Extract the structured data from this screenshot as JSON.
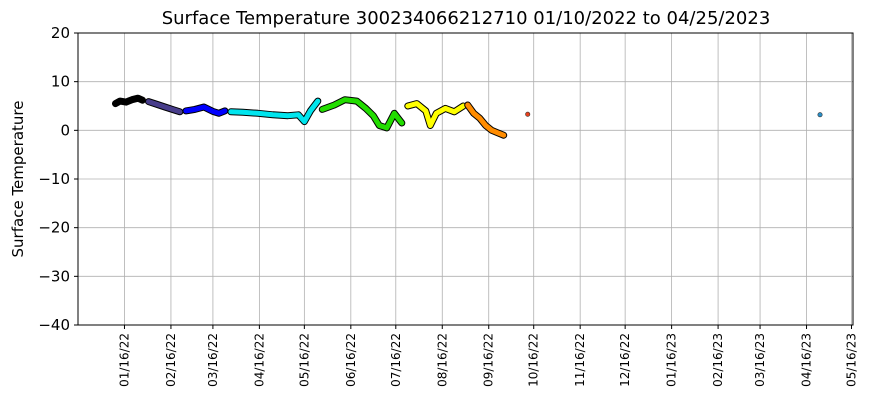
{
  "chart_data": {
    "type": "line",
    "title": "Surface Temperature 300234066212710  01/10/2022 to 04/25/2023",
    "y_label": "Surface Temperature",
    "xlim": [
      "2021-12-16",
      "2023-05-17"
    ],
    "xticks": [
      {
        "value": "2022-01-16",
        "label": "01/16/22"
      },
      {
        "value": "2022-02-16",
        "label": "02/16/22"
      },
      {
        "value": "2022-03-16",
        "label": "03/16/22"
      },
      {
        "value": "2022-04-16",
        "label": "04/16/22"
      },
      {
        "value": "2022-05-16",
        "label": "05/16/22"
      },
      {
        "value": "2022-06-16",
        "label": "06/16/22"
      },
      {
        "value": "2022-07-16",
        "label": "07/16/22"
      },
      {
        "value": "2022-08-16",
        "label": "08/16/22"
      },
      {
        "value": "2022-09-16",
        "label": "09/16/22"
      },
      {
        "value": "2022-10-16",
        "label": "10/16/22"
      },
      {
        "value": "2022-11-16",
        "label": "11/16/22"
      },
      {
        "value": "2022-12-16",
        "label": "12/16/22"
      },
      {
        "value": "2023-01-16",
        "label": "01/16/23"
      },
      {
        "value": "2023-02-16",
        "label": "02/16/23"
      },
      {
        "value": "2023-03-16",
        "label": "03/16/23"
      },
      {
        "value": "2023-04-16",
        "label": "04/16/23"
      },
      {
        "value": "2023-05-16",
        "label": "05/16/23"
      }
    ],
    "ylim": [
      -40,
      20
    ],
    "yticks": [
      {
        "value": -40,
        "label": "−40"
      },
      {
        "value": -30,
        "label": "−30"
      },
      {
        "value": -20,
        "label": "−20"
      },
      {
        "value": -10,
        "label": "−10"
      },
      0,
      10,
      20
    ],
    "grid": true,
    "series": [
      {
        "color": "#000000",
        "x": [
          "2022-01-10",
          "2022-01-13",
          "2022-01-17",
          "2022-01-21",
          "2022-01-25",
          "2022-01-28"
        ],
        "values": [
          5.5,
          6,
          5.8,
          6.3,
          6.6,
          6.2
        ]
      },
      {
        "color": "#483d8b",
        "x": [
          "2022-02-01",
          "2022-02-07",
          "2022-02-12",
          "2022-02-18",
          "2022-02-22"
        ],
        "values": [
          5.9,
          5.3,
          4.8,
          4.2,
          3.8
        ]
      },
      {
        "color": "#0000ff",
        "x": [
          "2022-02-26",
          "2022-03-04",
          "2022-03-10",
          "2022-03-16",
          "2022-03-20",
          "2022-03-24"
        ],
        "values": [
          4.0,
          4.3,
          4.8,
          3.9,
          3.5,
          4.0
        ]
      },
      {
        "color": "#00e5ee",
        "x": [
          "2022-03-28",
          "2022-04-05",
          "2022-04-15",
          "2022-04-25",
          "2022-05-05",
          "2022-05-12",
          "2022-05-16",
          "2022-05-20",
          "2022-05-25"
        ],
        "values": [
          3.8,
          3.7,
          3.5,
          3.2,
          3.0,
          3.2,
          1.8,
          4.0,
          6.0
        ]
      },
      {
        "color": "#22dd00",
        "x": [
          "2022-05-28",
          "2022-06-05",
          "2022-06-12",
          "2022-06-20",
          "2022-06-26",
          "2022-07-01",
          "2022-07-05",
          "2022-07-10",
          "2022-07-15",
          "2022-07-20"
        ],
        "values": [
          4.3,
          5.2,
          6.3,
          6.0,
          4.5,
          3.0,
          1.0,
          0.5,
          3.5,
          1.5
        ]
      },
      {
        "color": "#ffff00",
        "x": [
          "2022-07-24",
          "2022-07-30",
          "2022-08-05",
          "2022-08-08",
          "2022-08-12",
          "2022-08-18",
          "2022-08-24",
          "2022-08-30"
        ],
        "values": [
          5.0,
          5.5,
          4.0,
          1.0,
          3.5,
          4.5,
          3.8,
          5.0
        ]
      },
      {
        "color": "#ff8c00",
        "x": [
          "2022-09-02",
          "2022-09-06",
          "2022-09-10",
          "2022-09-14",
          "2022-09-18",
          "2022-09-22",
          "2022-09-26"
        ],
        "values": [
          5.2,
          3.5,
          2.5,
          1.0,
          0.0,
          -0.5,
          -1.0
        ]
      },
      {
        "color": "#e8401c",
        "x": [
          "2022-10-12"
        ],
        "values": [
          3.3
        ]
      },
      {
        "color": "#2a8fc8",
        "x": [
          "2023-04-25"
        ],
        "values": [
          3.2
        ]
      }
    ]
  }
}
